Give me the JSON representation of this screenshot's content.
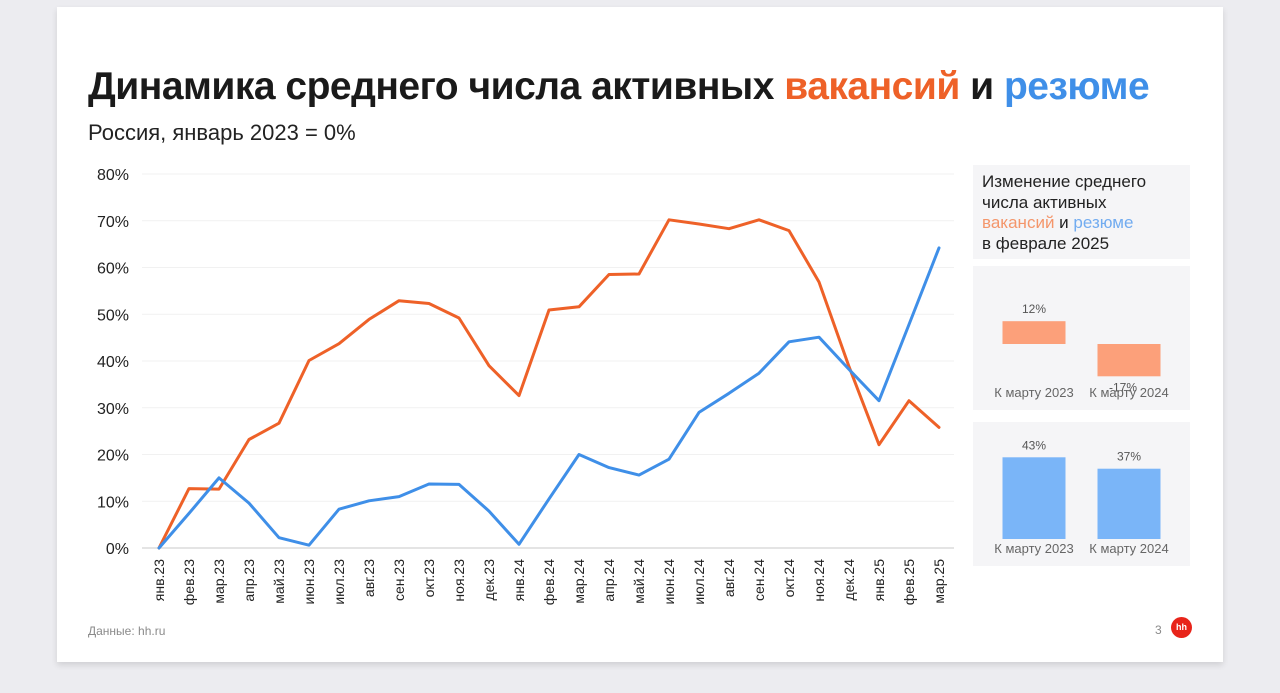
{
  "title": {
    "part1": "Динамика среднего числа активных ",
    "part2": "вакансий",
    "part3": " и ",
    "part4": "резюме"
  },
  "subtitle": "Россия, январь 2023 = 0%",
  "colors": {
    "vacancies": "#ee6128",
    "resumes": "#3f8fe8",
    "vacancies_light": "#fca07a",
    "resumes_light": "#7ab5f8"
  },
  "chart_data": [
    {
      "type": "line",
      "categories": [
        "янв.23",
        "фев.23",
        "мар.23",
        "апр.23",
        "май.23",
        "июн.23",
        "июл.23",
        "авг.23",
        "сен.23",
        "окт.23",
        "ноя.23",
        "дек.23",
        "янв.24",
        "фев.24",
        "мар.24",
        "апр.24",
        "май.24",
        "июн.24",
        "июл.24",
        "авг.24",
        "сен.24",
        "окт.24",
        "ноя.24",
        "дек.24",
        "янв.25",
        "фев.25",
        "мар.25"
      ],
      "series": [
        {
          "key": "vacancies",
          "values": [
            0,
            12.7,
            12.6,
            23.2,
            26.7,
            40.1,
            43.7,
            48.9,
            52.9,
            52.3,
            49.2,
            39.0,
            32.6,
            50.9,
            51.6,
            58.5,
            58.6,
            70.2,
            69.3,
            68.3,
            70.2,
            67.9,
            56.9,
            38.8,
            22.1,
            31.5,
            25.8
          ]
        },
        {
          "key": "resumes",
          "values": [
            0,
            7.4,
            15.0,
            9.6,
            2.2,
            0.6,
            8.3,
            10.1,
            11.0,
            13.7,
            13.6,
            7.9,
            0.8,
            10.5,
            20.0,
            17.2,
            15.6,
            19.0,
            29.0,
            33.1,
            37.4,
            44.1,
            45.1,
            38.2,
            31.5,
            47.8,
            64.2
          ]
        }
      ],
      "yticks": [
        "0%",
        "10%",
        "20%",
        "30%",
        "40%",
        "50%",
        "60%",
        "70%",
        "80%"
      ],
      "ylim": [
        0,
        80
      ],
      "grid": true
    },
    {
      "type": "bar",
      "series_key": "vacancies",
      "categories": [
        "К марту 2023",
        "К марту 2024"
      ],
      "values": [
        12,
        -17
      ],
      "labels": [
        "12%",
        "-17%"
      ]
    },
    {
      "type": "bar",
      "series_key": "resumes",
      "categories": [
        "К марту 2023",
        "К марту 2024"
      ],
      "values": [
        43,
        37
      ],
      "labels": [
        "43%",
        "37%"
      ]
    }
  ],
  "side_heading": {
    "line1": "Изменение среднего",
    "line2": "числа активных",
    "vacancies_word": "вакансий",
    "and_word": " и ",
    "resumes_word": "резюме",
    "line4": "в феврале 2025"
  },
  "footer": {
    "source": "Данные: hh.ru",
    "page_number": "3",
    "logo_text": "hh"
  }
}
